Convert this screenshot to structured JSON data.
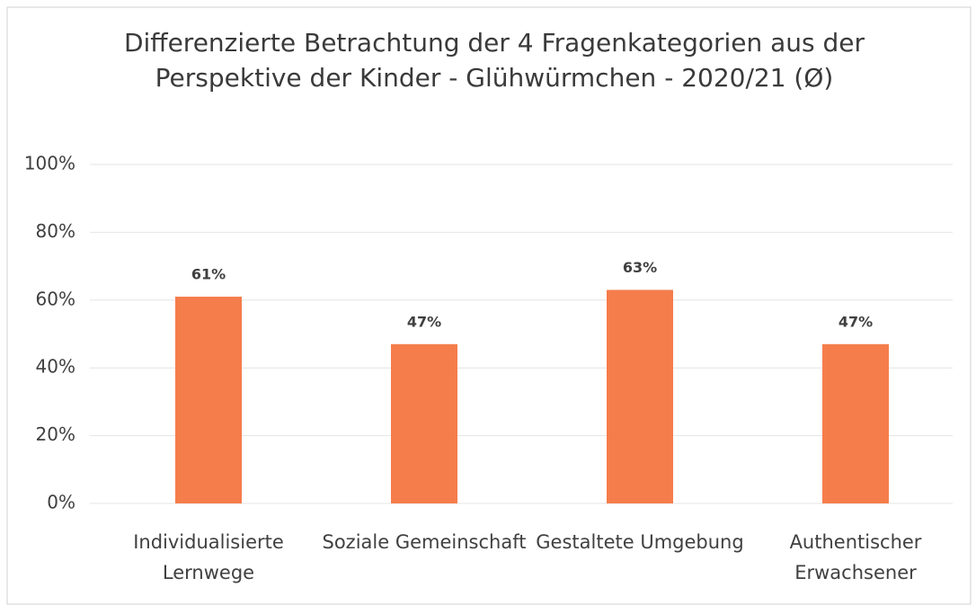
{
  "chart_data": {
    "type": "bar",
    "title": "Differenzierte Betrachtung der 4 Fragenkategorien aus der Perspektive der Kinder - Glühwürmchen - 2020/21 (Ø)",
    "categories": [
      "Individualisierte Lernwege",
      "Soziale Gemeinschaft",
      "Gestaltete Umgebung",
      "Authentischer Erwachsener"
    ],
    "values": [
      61,
      47,
      63,
      47
    ],
    "value_labels": [
      "61%",
      "47%",
      "63%",
      "47%"
    ],
    "color": "#f57d4b",
    "ylim": [
      0,
      100
    ],
    "yticks": [
      {
        "value": 0,
        "label": "0%"
      },
      {
        "value": 20,
        "label": "20%"
      },
      {
        "value": 40,
        "label": "40%"
      },
      {
        "value": 60,
        "label": "60%"
      },
      {
        "value": 80,
        "label": "80%"
      },
      {
        "value": 100,
        "label": "100%"
      }
    ],
    "grid": true
  }
}
